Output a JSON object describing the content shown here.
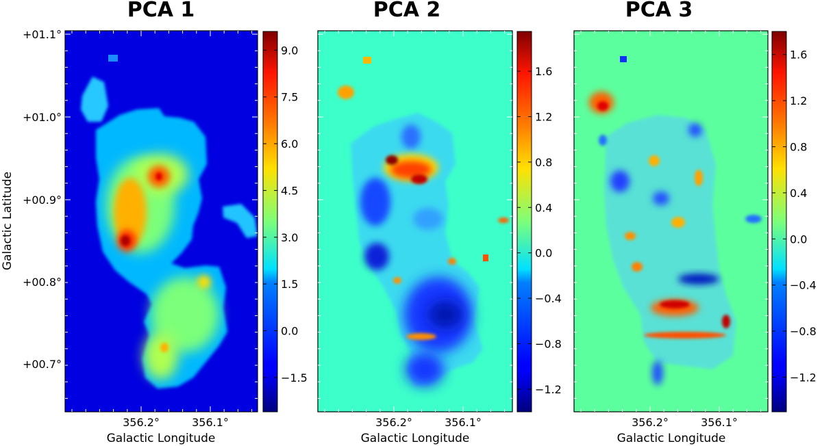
{
  "chart_data": [
    {
      "type": "heatmap",
      "title": "PCA 1",
      "xlabel": "Galactic Longitude",
      "ylabel": "Galactic Latitude",
      "x_ticks": [
        "356.2°",
        "356.1°"
      ],
      "y_ticks": [
        "+01.1°",
        "+01.0°",
        "+00.9°",
        "+00.8°",
        "+00.7°"
      ],
      "colorbar": {
        "ticks": [
          "9.0",
          "7.5",
          "6.0",
          "4.5",
          "3.0",
          "1.5",
          "0.0",
          "−1.5"
        ],
        "range": [
          -2.6,
          9.6
        ]
      },
      "background_value": -0.6
    },
    {
      "type": "heatmap",
      "title": "PCA 2",
      "xlabel": "Galactic Longitude",
      "x_ticks": [
        "356.2°",
        "356.1°"
      ],
      "colorbar": {
        "ticks": [
          "1.6",
          "1.2",
          "0.8",
          "0.4",
          "0.0",
          "−0.4",
          "−0.8",
          "−1.2"
        ],
        "range": [
          -1.4,
          1.95
        ]
      },
      "background_value": 0.05
    },
    {
      "type": "heatmap",
      "title": "PCA 3",
      "xlabel": "Galactic Longitude",
      "x_ticks": [
        "356.2°",
        "356.1°"
      ],
      "colorbar": {
        "ticks": [
          "1.6",
          "1.2",
          "0.8",
          "0.4",
          "0.0",
          "−0.4",
          "−0.8",
          "−1.2"
        ],
        "range": [
          -1.5,
          1.8
        ]
      },
      "background_value": 0.0
    }
  ]
}
